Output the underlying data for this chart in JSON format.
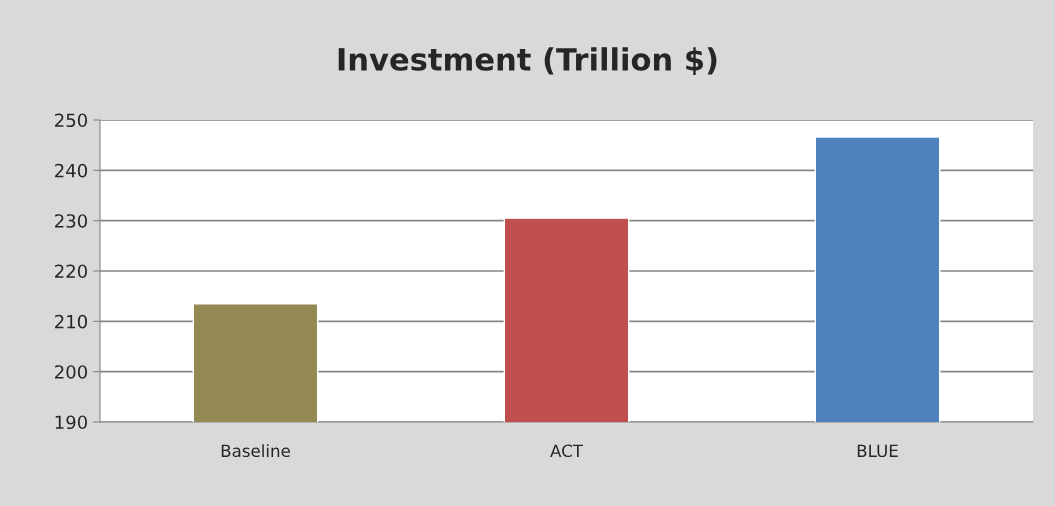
{
  "chart_data": {
    "type": "bar",
    "title": "Investment (Trillion $)",
    "categories": [
      "Baseline",
      "ACT",
      "BLUE"
    ],
    "values": [
      213.5,
      230.5,
      246.6
    ],
    "colors": [
      "#938953",
      "#c0504d",
      "#4f81bd"
    ],
    "ylim": [
      190,
      250
    ],
    "yticks": [
      190,
      200,
      210,
      220,
      230,
      240,
      250
    ],
    "grid": "y",
    "legend": false
  }
}
